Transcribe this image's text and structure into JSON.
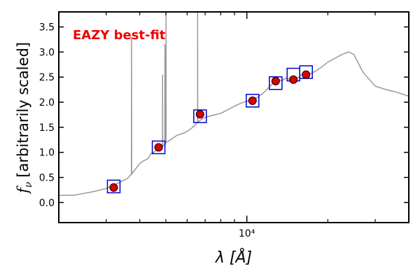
{
  "chart_data": {
    "type": "line",
    "title": "",
    "annotation": "EAZY best-fit",
    "xlabel": "λ [Å]",
    "ylabel": "[arbitrarily scaled]",
    "ylabel_symbol": "f_ν",
    "xscale": "log",
    "xlim": [
      2000,
      40000
    ],
    "ylim": [
      -0.4,
      3.8
    ],
    "yticks": [
      0.0,
      0.5,
      1.0,
      1.5,
      2.0,
      2.5,
      3.0,
      3.5
    ],
    "ytick_labels": [
      "0.0",
      "0.5",
      "1.0",
      "1.5",
      "2.0",
      "2.5",
      "3.0",
      "3.5"
    ],
    "xticks": [
      10000
    ],
    "xtick_labels": [
      "10⁴"
    ],
    "x_minor_ticks": [
      3000,
      4000,
      5000,
      6000,
      7000,
      8000,
      9000,
      20000,
      30000
    ],
    "series": [
      {
        "name": "best-fit template",
        "style": "line",
        "color": "#999999",
        "x": [
          2000,
          2300,
          2700,
          3000,
          3300,
          3600,
          3800,
          4000,
          4100,
          4200,
          4300,
          4400,
          4500,
          4700,
          4861,
          5000,
          5007,
          5100,
          5300,
          5500,
          5800,
          6000,
          6300,
          6563,
          6700,
          7000,
          7500,
          8000,
          8500,
          9000,
          9500,
          10000,
          10500,
          11000,
          11500,
          12000,
          12500,
          13000,
          13500,
          14000,
          14500,
          15000,
          15500,
          16000,
          16500,
          17000,
          18000,
          19000,
          20000,
          21000,
          22000,
          23000,
          24000,
          25000,
          27000,
          30000,
          33000,
          36000,
          40000
        ],
        "y": [
          0.14,
          0.15,
          0.22,
          0.28,
          0.38,
          0.48,
          0.62,
          0.78,
          0.82,
          0.85,
          0.88,
          0.98,
          1.0,
          1.07,
          1.12,
          1.18,
          1.2,
          1.22,
          1.28,
          1.34,
          1.38,
          1.42,
          1.5,
          1.6,
          1.64,
          1.7,
          1.74,
          1.78,
          1.85,
          1.92,
          1.98,
          2.02,
          2.05,
          2.1,
          2.18,
          2.28,
          2.38,
          2.45,
          2.43,
          2.48,
          2.45,
          2.5,
          2.48,
          2.55,
          2.58,
          2.55,
          2.62,
          2.7,
          2.8,
          2.86,
          2.92,
          2.97,
          3.0,
          2.95,
          2.6,
          2.32,
          2.25,
          2.2,
          2.12
        ],
        "emission_lines": [
          {
            "x": 3727,
            "peak": 3.3
          },
          {
            "x": 4861,
            "peak": 2.55
          },
          {
            "x": 4959,
            "peak": 3.15
          },
          {
            "x": 5007,
            "peak": 3.8
          },
          {
            "x": 6563,
            "peak": 3.8
          }
        ]
      },
      {
        "name": "model photometry",
        "style": "square",
        "color": "#0000cc",
        "x": [
          3200,
          4700,
          6700,
          10500,
          12800,
          14900,
          16600
        ],
        "y": [
          0.32,
          1.1,
          1.72,
          2.03,
          2.38,
          2.55,
          2.6
        ]
      },
      {
        "name": "observed photometry",
        "style": "circle",
        "color": "#dd0000",
        "x": [
          3200,
          4700,
          6700,
          10500,
          12800,
          14900,
          16600
        ],
        "y": [
          0.3,
          1.1,
          1.76,
          2.03,
          2.42,
          2.45,
          2.55
        ]
      }
    ],
    "colors": {
      "annotation": "#ee0000",
      "axis": "#000000"
    }
  }
}
